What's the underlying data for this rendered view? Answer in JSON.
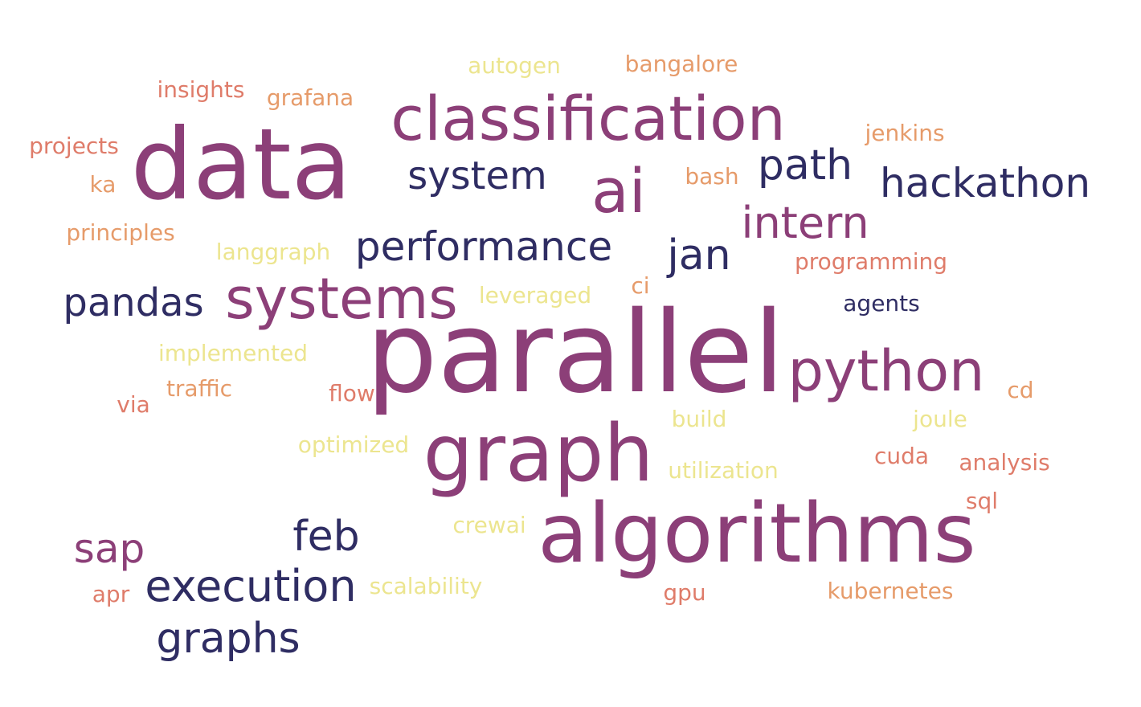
{
  "colors": {
    "plum": "#8c3f78",
    "navy": "#2f2d63",
    "salmon": "#df7c6a",
    "orange": "#e69b6a",
    "cream": "#ece58f",
    "background": "#ffffff"
  },
  "words": {
    "parallel": "parallel",
    "algorithms": "algorithms",
    "data": "data",
    "graph": "graph",
    "classification": "classification",
    "systems": "systems",
    "python": "python",
    "ai": "ai",
    "intern": "intern",
    "hackathon": "hackathon",
    "performance": "performance",
    "system": "system",
    "path": "path",
    "jan": "jan",
    "pandas": "pandas",
    "execution": "execution",
    "graphs": "graphs",
    "feb": "feb",
    "sap": "sap",
    "agents": "agents",
    "insights": "insights",
    "grafana": "grafana",
    "projects": "projects",
    "ka": "ka",
    "principles": "principles",
    "autogen": "autogen",
    "bangalore": "bangalore",
    "jenkins": "jenkins",
    "bash": "bash",
    "langgraph": "langgraph",
    "programming": "programming",
    "ci": "ci",
    "leveraged": "leveraged",
    "implemented": "implemented",
    "traffic": "traffic",
    "via": "via",
    "flow": "flow",
    "cd": "cd",
    "build": "build",
    "joule": "joule",
    "optimized": "optimized",
    "cuda": "cuda",
    "analysis": "analysis",
    "utilization": "utilization",
    "sql": "sql",
    "crewai": "crewai",
    "scalability": "scalability",
    "apr": "apr",
    "gpu": "gpu",
    "kubernetes": "kubernetes"
  }
}
